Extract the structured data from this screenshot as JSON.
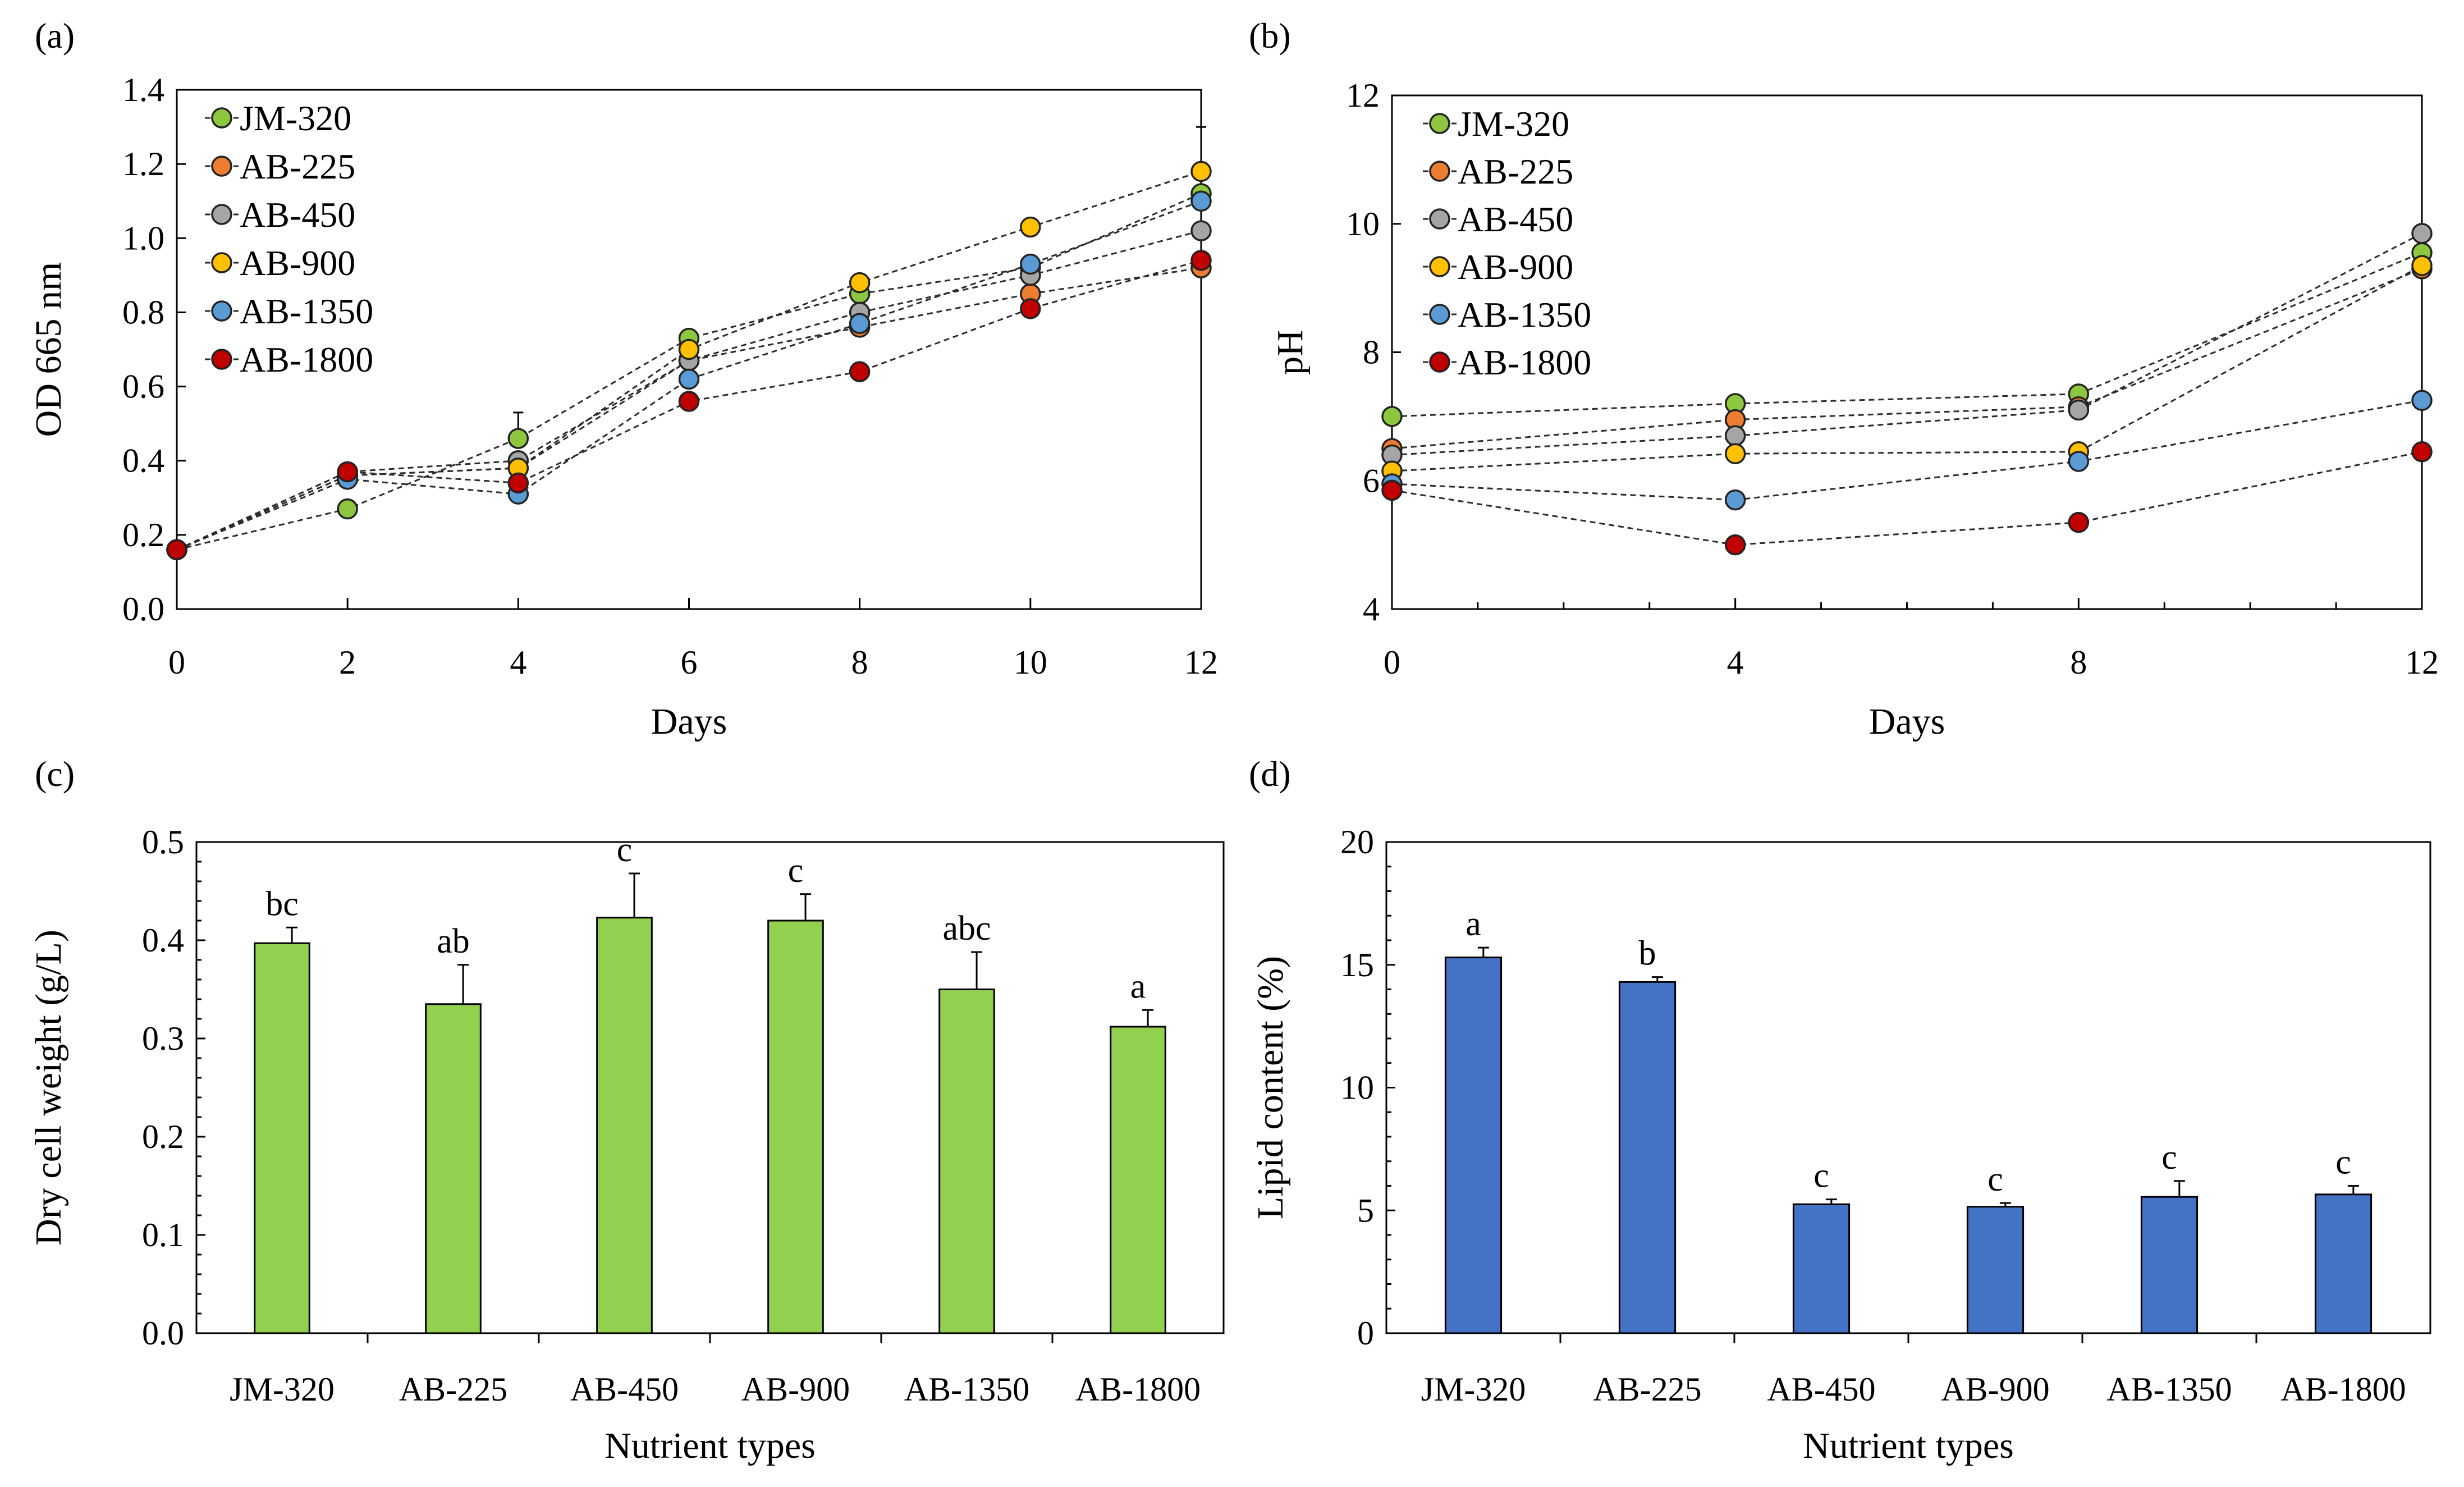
{
  "chart_data": [
    {
      "panel": "(a)",
      "type": "line",
      "xlabel": "Days",
      "ylabel": "OD 665 nm",
      "xlim": [
        0,
        12
      ],
      "ylim": [
        0.0,
        1.4
      ],
      "xticks": [
        0,
        2,
        4,
        6,
        8,
        10,
        12
      ],
      "yticks": [
        0.0,
        0.2,
        0.4,
        0.6,
        0.8,
        1.0,
        1.2,
        1.4
      ],
      "ytick_labels": [
        "0.0",
        "0.2",
        "0.4",
        "0.6",
        "0.8",
        "1.0",
        "1.2",
        "1.4"
      ],
      "x": [
        0,
        2,
        4,
        6,
        8,
        10,
        12
      ],
      "series": [
        {
          "name": "JM-320",
          "color": "#8dc63f",
          "values": [
            0.16,
            0.27,
            0.46,
            0.73,
            0.85,
            0.92,
            1.12
          ],
          "errors": [
            0,
            0.01,
            0.07,
            0.01,
            0.01,
            0.01,
            0.18
          ]
        },
        {
          "name": "AB-225",
          "color": "#ed7d31",
          "values": [
            0.16,
            0.36,
            0.38,
            0.67,
            0.76,
            0.85,
            0.92
          ],
          "errors": [
            0,
            0.01,
            0.01,
            0.01,
            0.01,
            0.01,
            0.01
          ]
        },
        {
          "name": "AB-450",
          "color": "#a5a5a5",
          "values": [
            0.16,
            0.37,
            0.4,
            0.67,
            0.8,
            0.9,
            1.02
          ],
          "errors": [
            0,
            0.01,
            0.01,
            0.01,
            0.01,
            0.01,
            0.01
          ]
        },
        {
          "name": "AB-900",
          "color": "#ffc000",
          "values": [
            0.16,
            0.36,
            0.38,
            0.7,
            0.88,
            1.03,
            1.18
          ],
          "errors": [
            0,
            0.01,
            0.01,
            0.01,
            0.01,
            0.01,
            0.01
          ]
        },
        {
          "name": "AB-1350",
          "color": "#5b9bd5",
          "values": [
            0.16,
            0.35,
            0.31,
            0.62,
            0.77,
            0.93,
            1.1
          ],
          "errors": [
            0,
            0.01,
            0.01,
            0.01,
            0.01,
            0.01,
            0.01
          ]
        },
        {
          "name": "AB-1800",
          "color": "#c00000",
          "values": [
            0.16,
            0.37,
            0.34,
            0.56,
            0.64,
            0.81,
            0.94
          ],
          "errors": [
            0,
            0.01,
            0.01,
            0.01,
            0.01,
            0.01,
            0.01
          ]
        }
      ],
      "legend": "top-left"
    },
    {
      "panel": "(b)",
      "type": "line",
      "xlabel": "Days",
      "ylabel": "pH",
      "xlim": [
        0,
        12
      ],
      "ylim": [
        4,
        12
      ],
      "xticks": [
        0,
        4,
        8,
        12
      ],
      "yticks": [
        4,
        6,
        8,
        10,
        12
      ],
      "ytick_labels": [
        "4",
        "6",
        "8",
        "10",
        "12"
      ],
      "x_minor_step": 1,
      "x": [
        0,
        4,
        8,
        12
      ],
      "series": [
        {
          "name": "JM-320",
          "color": "#8dc63f",
          "values": [
            7.0,
            7.2,
            7.35,
            9.55
          ]
        },
        {
          "name": "AB-225",
          "color": "#ed7d31",
          "values": [
            6.5,
            6.95,
            7.15,
            9.3
          ]
        },
        {
          "name": "AB-450",
          "color": "#a5a5a5",
          "values": [
            6.4,
            6.7,
            7.1,
            9.85
          ]
        },
        {
          "name": "AB-900",
          "color": "#ffc000",
          "values": [
            6.15,
            6.42,
            6.45,
            9.35
          ]
        },
        {
          "name": "AB-1350",
          "color": "#5b9bd5",
          "values": [
            5.95,
            5.7,
            6.3,
            7.25
          ]
        },
        {
          "name": "AB-1800",
          "color": "#c00000",
          "values": [
            5.85,
            5.0,
            5.35,
            6.45
          ]
        }
      ],
      "legend": "top-left"
    },
    {
      "panel": "(c)",
      "type": "bar",
      "xlabel": "Nutrient types",
      "ylabel": "Dry cell weight (g/L)",
      "ylim": [
        0.0,
        0.5
      ],
      "yticks": [
        0.0,
        0.1,
        0.2,
        0.3,
        0.4,
        0.5
      ],
      "ytick_labels": [
        "0.0",
        "0.1",
        "0.2",
        "0.3",
        "0.4",
        "0.5"
      ],
      "categories": [
        "JM-320",
        "AB-225",
        "AB-450",
        "AB-900",
        "AB-1350",
        "AB-1800"
      ],
      "values": [
        0.397,
        0.335,
        0.423,
        0.42,
        0.35,
        0.312
      ],
      "errors": [
        0.016,
        0.04,
        0.045,
        0.027,
        0.038,
        0.017
      ],
      "annotations": [
        "bc",
        "ab",
        "c",
        "c",
        "abc",
        "a"
      ],
      "color": "#92d050"
    },
    {
      "panel": "(d)",
      "type": "bar",
      "xlabel": "Nutrient types",
      "ylabel": "Lipid content (%)",
      "ylim": [
        0,
        20
      ],
      "yticks": [
        0,
        5,
        10,
        15,
        20
      ],
      "ytick_labels": [
        "0",
        "5",
        "10",
        "15",
        "20"
      ],
      "categories": [
        "JM-320",
        "AB-225",
        "AB-450",
        "AB-900",
        "AB-1350",
        "AB-1800"
      ],
      "values": [
        15.3,
        14.3,
        5.25,
        5.15,
        5.55,
        5.65
      ],
      "errors": [
        0.4,
        0.2,
        0.2,
        0.15,
        0.65,
        0.35
      ],
      "annotations": [
        "a",
        "b",
        "c",
        "c",
        "c",
        "c"
      ],
      "color": "#4472c4"
    }
  ]
}
